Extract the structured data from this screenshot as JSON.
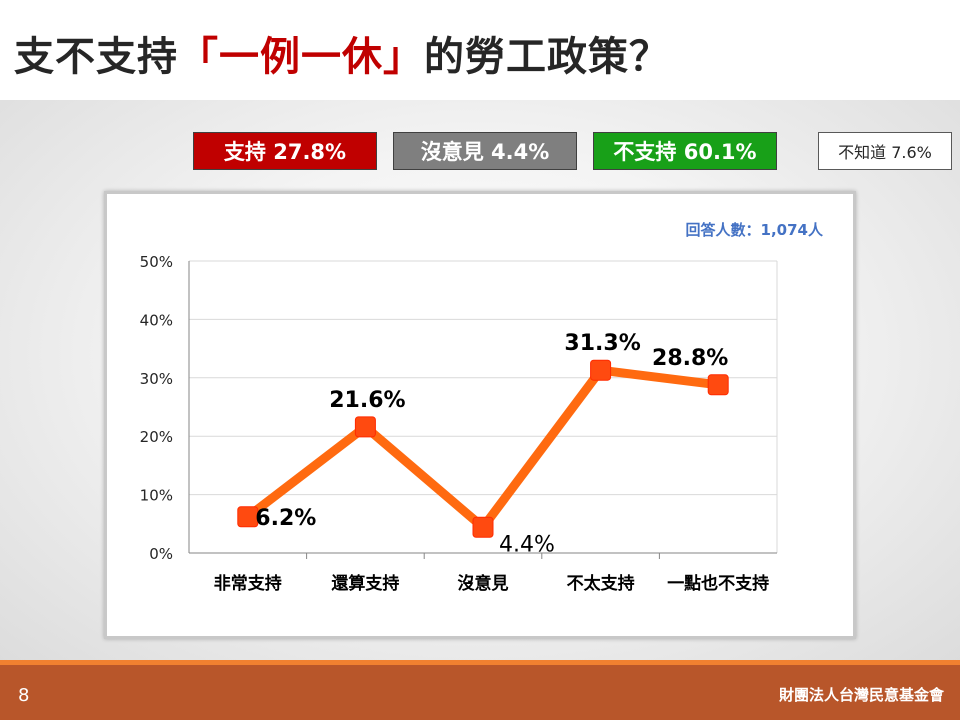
{
  "title": {
    "prefix": "支不支持",
    "highlight": "「一例一休」",
    "suffix": "的勞工政策？"
  },
  "summary": {
    "support": "支持 27.8%",
    "neutral": "沒意見 4.4%",
    "oppose": "不支持 60.1%",
    "unknown": "不知道 7.6%"
  },
  "respondents": "回答人數：1,074人",
  "chart_data": {
    "type": "line",
    "categories": [
      "非常支持",
      "還算支持",
      "沒意見",
      "不太支持",
      "一點也不支持"
    ],
    "values": [
      6.2,
      21.6,
      4.4,
      31.3,
      28.8
    ],
    "data_labels": [
      "6.2%",
      "21.6%",
      "4.4%",
      "31.3%",
      "28.8%"
    ],
    "ylim": [
      0,
      50
    ],
    "yticks": [
      "0%",
      "10%",
      "20%",
      "30%",
      "40%",
      "50%"
    ],
    "grid": true,
    "line_color": "#ff6a10",
    "marker_color": "#ff4a10"
  },
  "colors": {
    "support": "#c00000",
    "neutral": "#7f7f7f",
    "oppose": "#18a018",
    "footer": "#b8562a"
  },
  "footer": {
    "page": "8",
    "org": "財團法人台灣民意基金會"
  }
}
